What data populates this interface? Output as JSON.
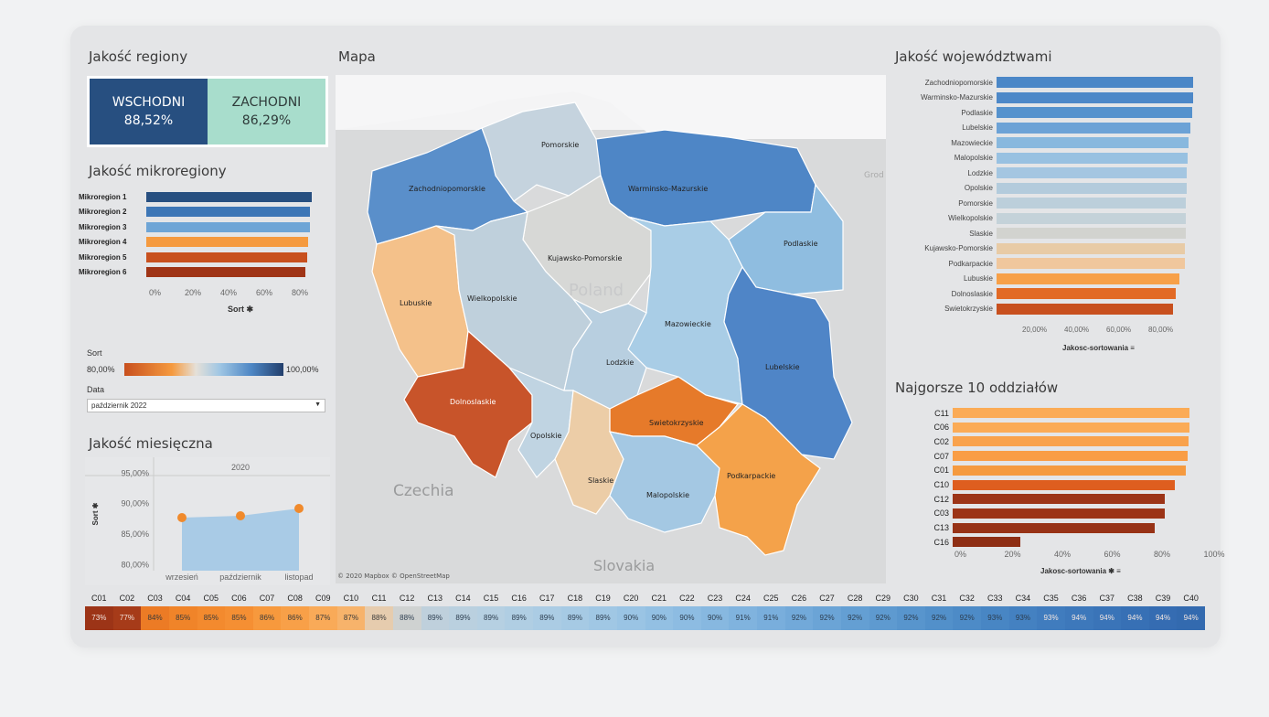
{
  "titles": {
    "regiony": "Jakość regiony",
    "mapa": "Mapa",
    "wojewodztwa": "Jakość województwami",
    "mikroregiony": "Jakość mikroregiony",
    "miesieczna": "Jakość miesięczna",
    "najgorsze": "Najgorsze 10 oddziałów"
  },
  "kpi": {
    "wschodni_label": "WSCHODNI",
    "wschodni_value": "88,52%",
    "zachodni_label": "ZACHODNI",
    "zachodni_value": "86,29%"
  },
  "mikroregiony": {
    "items": [
      {
        "label": "Mikroregion 1",
        "value": 0.93,
        "color": "#274f80"
      },
      {
        "label": "Mikroregion 2",
        "value": 0.92,
        "color": "#3d76b6"
      },
      {
        "label": "Mikroregion 3",
        "value": 0.92,
        "color": "#6ea5d6"
      },
      {
        "label": "Mikroregion 4",
        "value": 0.91,
        "color": "#f59a3f"
      },
      {
        "label": "Mikroregion 5",
        "value": 0.9,
        "color": "#c8501e"
      },
      {
        "label": "Mikroregion 6",
        "value": 0.89,
        "color": "#9f3416"
      }
    ],
    "ticks": [
      "0%",
      "20%",
      "40%",
      "60%",
      "80%"
    ],
    "axis_label": "Sort ✱"
  },
  "legend": {
    "sort_label": "Sort",
    "min": "80,00%",
    "max": "100,00%",
    "data_label": "Data",
    "data_value": "październik 2022"
  },
  "monthly": {
    "year": "2020",
    "y_axis": "Sort ✱",
    "y_ticks": [
      "95,00%",
      "90,00%",
      "85,00%",
      "80,00%"
    ],
    "months": [
      "wrzesień",
      "październik",
      "listopad"
    ],
    "values": [
      87.7,
      88.0,
      89.2
    ]
  },
  "map": {
    "voivodeships": [
      {
        "name": "Pomorskie",
        "color": "#c5d3de"
      },
      {
        "name": "Zachodniopomorskie",
        "color": "#5a8fca"
      },
      {
        "name": "Warminsko-Mazurskie",
        "color": "#4e86c6"
      },
      {
        "name": "Podlaskie",
        "color": "#8fbde0"
      },
      {
        "name": "Kujawsko-Pomorskie",
        "color": "#d7d8d6"
      },
      {
        "name": "Lubuskie",
        "color": "#f4c18a"
      },
      {
        "name": "Wielkopolskie",
        "color": "#bfd0dc"
      },
      {
        "name": "Mazowieckie",
        "color": "#a9cde6"
      },
      {
        "name": "Lodzkie",
        "color": "#b8cfe0"
      },
      {
        "name": "Lubelskie",
        "color": "#4f85c7"
      },
      {
        "name": "Dolnoslaskie",
        "color": "#c8542a"
      },
      {
        "name": "Opolskie",
        "color": "#c0d4e2"
      },
      {
        "name": "Swietokrzyskie",
        "color": "#e67a2a"
      },
      {
        "name": "Slaskie",
        "color": "#eccda7"
      },
      {
        "name": "Malopolskie",
        "color": "#a4c8e3"
      },
      {
        "name": "Podkarpackie",
        "color": "#f4a24a"
      }
    ],
    "countries": {
      "poland": "Poland",
      "czechia": "Czechia",
      "slovakia": "Slovakia",
      "grodno": "Grod"
    },
    "credit": "© 2020 Mapbox © OpenStreetMap"
  },
  "wojewodztwa": {
    "items": [
      {
        "label": "Zachodniopomorskie",
        "value": 0.944,
        "color": "#4b87c7"
      },
      {
        "label": "Warminsko-Mazurskie",
        "value": 0.942,
        "color": "#4d88c8"
      },
      {
        "label": "Podlaskie",
        "value": 0.94,
        "color": "#5592cd"
      },
      {
        "label": "Lubelskie",
        "value": 0.932,
        "color": "#6ca2d6"
      },
      {
        "label": "Mazowieckie",
        "value": 0.92,
        "color": "#88b8de"
      },
      {
        "label": "Malopolskie",
        "value": 0.915,
        "color": "#98c1e1"
      },
      {
        "label": "Lodzkie",
        "value": 0.914,
        "color": "#a4c6e1"
      },
      {
        "label": "Opolskie",
        "value": 0.912,
        "color": "#b3cbdc"
      },
      {
        "label": "Pomorskie",
        "value": 0.91,
        "color": "#bccfdb"
      },
      {
        "label": "Wielkopolskie",
        "value": 0.908,
        "color": "#c4d2d9"
      },
      {
        "label": "Slaskie",
        "value": 0.906,
        "color": "#d2d3cf"
      },
      {
        "label": "Kujawsko-Pomorskie",
        "value": 0.904,
        "color": "#e8cba6"
      },
      {
        "label": "Podkarpackie",
        "value": 0.902,
        "color": "#f0c79d"
      },
      {
        "label": "Lubuskie",
        "value": 0.878,
        "color": "#f7a048"
      },
      {
        "label": "Dolnoslaskie",
        "value": 0.858,
        "color": "#e26a25"
      },
      {
        "label": "Swietokrzyskie",
        "value": 0.846,
        "color": "#c8501e"
      }
    ],
    "ticks": [
      "20,00%",
      "40,00%",
      "60,00%",
      "80,00%"
    ],
    "axis_label": "Jakosc-sortowania ≡"
  },
  "najgorsze": {
    "items": [
      {
        "label": "C11",
        "value": 0.95,
        "color": "#fbab56"
      },
      {
        "label": "C06",
        "value": 0.95,
        "color": "#fbab56"
      },
      {
        "label": "C02",
        "value": 0.945,
        "color": "#f9a24c"
      },
      {
        "label": "C07",
        "value": 0.94,
        "color": "#f99d45"
      },
      {
        "label": "C01",
        "value": 0.935,
        "color": "#f59a3f"
      },
      {
        "label": "C10",
        "value": 0.89,
        "color": "#de5e1f"
      },
      {
        "label": "C12",
        "value": 0.85,
        "color": "#9c3417"
      },
      {
        "label": "C03",
        "value": 0.85,
        "color": "#9c3417"
      },
      {
        "label": "C13",
        "value": 0.81,
        "color": "#973216"
      },
      {
        "label": "C16",
        "value": 0.27,
        "color": "#8e2e14"
      }
    ],
    "ticks": [
      "0%",
      "20%",
      "40%",
      "60%",
      "80%",
      "100%"
    ],
    "axis_label": "Jakosc-sortowania ✱ ≡"
  },
  "strip": {
    "codes": [
      "C01",
      "C02",
      "C03",
      "C04",
      "C05",
      "C06",
      "C07",
      "C08",
      "C09",
      "C10",
      "C11",
      "C12",
      "C13",
      "C14",
      "C15",
      "C16",
      "C17",
      "C18",
      "C19",
      "C20",
      "C21",
      "C22",
      "C23",
      "C24",
      "C25",
      "C26",
      "C27",
      "C28",
      "C29",
      "C30",
      "C31",
      "C32",
      "C33",
      "C34",
      "C35",
      "C36",
      "C37",
      "C38",
      "C39",
      "C40"
    ],
    "values": [
      "73%",
      "77%",
      "84%",
      "85%",
      "85%",
      "85%",
      "86%",
      "86%",
      "87%",
      "87%",
      "88%",
      "88%",
      "89%",
      "89%",
      "89%",
      "89%",
      "89%",
      "89%",
      "89%",
      "90%",
      "90%",
      "90%",
      "90%",
      "91%",
      "91%",
      "92%",
      "92%",
      "92%",
      "92%",
      "92%",
      "92%",
      "92%",
      "93%",
      "93%",
      "93%",
      "94%",
      "94%",
      "94%",
      "94%",
      "94%"
    ],
    "colors": [
      "#9c3417",
      "#a63b19",
      "#ec7b25",
      "#f08429",
      "#f38a2e",
      "#f58f33",
      "#f7993d",
      "#f8a048",
      "#f9aa58",
      "#f7b36b",
      "#e6ccae",
      "#cfd2d1",
      "#bfd0dc",
      "#bad0df",
      "#b6d0e2",
      "#b0cee3",
      "#abcce4",
      "#a6cae4",
      "#a0c7e4",
      "#9ac4e4",
      "#93c0e3",
      "#8dbce2",
      "#87b8e0",
      "#80b3de",
      "#79aedc",
      "#72a9d9",
      "#6ba4d6",
      "#649fd3",
      "#5e9ad0",
      "#5895cd",
      "#5290ca",
      "#4d8bc7",
      "#4886c4",
      "#4481c1",
      "#407cbe",
      "#3d78bb",
      "#3a74b8",
      "#3770b5",
      "#356cb2",
      "#336aaf"
    ]
  }
}
